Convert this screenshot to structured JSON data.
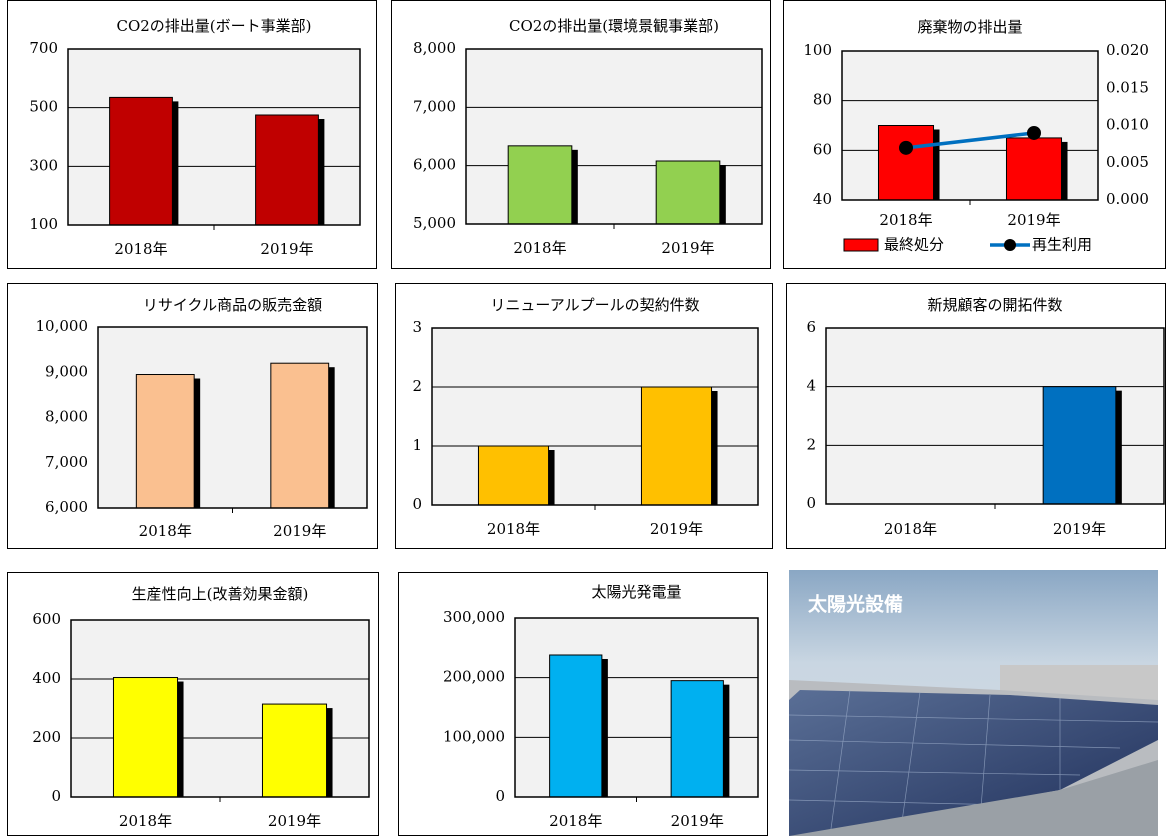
{
  "chart_data": [
    {
      "type": "bar",
      "title": "CO2の排出量(ボート事業部)",
      "categories": [
        "2018年",
        "2019年"
      ],
      "values": [
        535,
        475
      ],
      "color": "#c00000",
      "ylim": [
        100,
        700
      ],
      "yticks": [
        100,
        300,
        500,
        700
      ],
      "grid": true
    },
    {
      "type": "bar",
      "title": "CO2の排出量(環境景観事業部)",
      "categories": [
        "2018年",
        "2019年"
      ],
      "values": [
        6340,
        6080
      ],
      "color": "#92d050",
      "ylim": [
        5000,
        8000
      ],
      "yticks": [
        {
          "value": 5000,
          "label": "5,000"
        },
        {
          "value": 6000,
          "label": "6,000"
        },
        {
          "value": 7000,
          "label": "7,000"
        },
        {
          "value": 8000,
          "label": "8,000"
        }
      ],
      "grid": true
    },
    {
      "type": "combo",
      "title": "廃棄物の排出量",
      "categories": [
        "2018年",
        "2019年"
      ],
      "series": [
        {
          "name": "最終処分",
          "type": "bar",
          "color": "#ff0000",
          "values": [
            70,
            65
          ]
        },
        {
          "name": "再生利用",
          "type": "line",
          "axis": "y2",
          "color": "#0070c0",
          "values": [
            0.007,
            0.009
          ]
        }
      ],
      "ylim": [
        40,
        100
      ],
      "yticks": [
        40,
        60,
        80,
        100
      ],
      "y2lim": [
        0,
        0.02
      ],
      "y2ticks": [
        {
          "value": 0,
          "label": "0.000"
        },
        {
          "value": 0.005,
          "label": "0.005"
        },
        {
          "value": 0.01,
          "label": "0.010"
        },
        {
          "value": 0.015,
          "label": "0.015"
        },
        {
          "value": 0.02,
          "label": "0.020"
        }
      ],
      "grid": true,
      "legend": "bottom"
    },
    {
      "type": "bar",
      "title": "リサイクル商品の販売金額",
      "categories": [
        "2018年",
        "2019年"
      ],
      "values": [
        8950,
        9200
      ],
      "color": "#fac090",
      "ylim": [
        6000,
        10000
      ],
      "yticks": [
        {
          "value": 6000,
          "label": "6,000"
        },
        {
          "value": 7000,
          "label": "7,000"
        },
        {
          "value": 8000,
          "label": "8,000"
        },
        {
          "value": 9000,
          "label": "9,000"
        },
        {
          "value": 10000,
          "label": "10,000"
        }
      ],
      "grid": false
    },
    {
      "type": "bar",
      "title": "リニューアルプールの契約件数",
      "categories": [
        "2018年",
        "2019年"
      ],
      "values": [
        1,
        2
      ],
      "color": "#ffc000",
      "ylim": [
        0,
        3
      ],
      "yticks": [
        0,
        1,
        2,
        3
      ],
      "grid": true
    },
    {
      "type": "bar",
      "title": "新規顧客の開拓件数",
      "categories": [
        "2018年",
        "2019年"
      ],
      "values": [
        0,
        4
      ],
      "color": "#0070c0",
      "ylim": [
        0,
        6
      ],
      "yticks": [
        0,
        2,
        4,
        6
      ],
      "grid": true
    },
    {
      "type": "bar",
      "title": "生産性向上(改善効果金額)",
      "categories": [
        "2018年",
        "2019年"
      ],
      "values": [
        405,
        315
      ],
      "color": "#ffff00",
      "ylim": [
        0,
        600
      ],
      "yticks": [
        0,
        200,
        400,
        600
      ],
      "grid": true
    },
    {
      "type": "bar",
      "title": "太陽光発電量",
      "categories": [
        "2018年",
        "2019年"
      ],
      "values": [
        238000,
        195000
      ],
      "color": "#00b0f0",
      "ylim": [
        0,
        300000
      ],
      "yticks": [
        {
          "value": 0,
          "label": "0"
        },
        {
          "value": 100000,
          "label": "100,000"
        },
        {
          "value": 200000,
          "label": "200,000"
        },
        {
          "value": 300000,
          "label": "300,000"
        }
      ],
      "grid": true
    }
  ],
  "photo": {
    "caption": "太陽光設備"
  }
}
